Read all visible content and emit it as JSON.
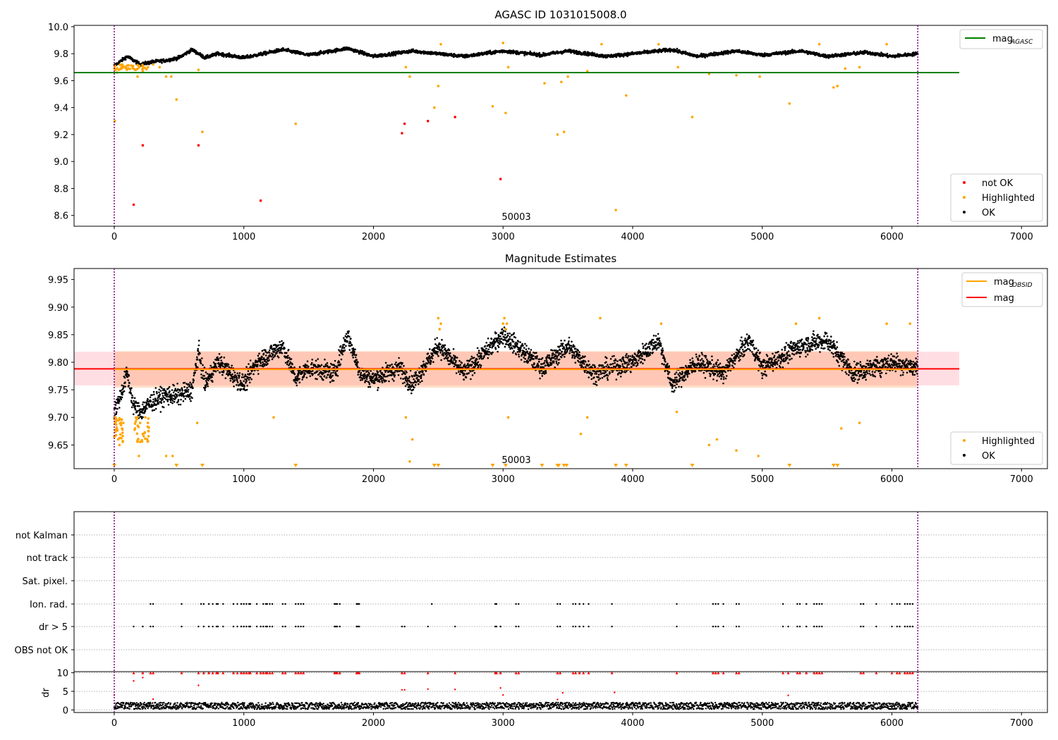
{
  "chart_data": [
    {
      "type": "scatter",
      "title": "AGASC ID 1031015008.0",
      "xlabel": "",
      "ylabel": "",
      "xlim": [
        -310,
        7200
      ],
      "ylim": [
        8.52,
        10.01
      ],
      "xticks": [
        "0",
        "1000",
        "2000",
        "3000",
        "4000",
        "5000",
        "6000",
        "7000"
      ],
      "yticks": [
        "10.0",
        "9.8",
        "9.6",
        "9.4",
        "9.2",
        "9.0",
        "8.8",
        "8.6"
      ],
      "grid": false,
      "obsid_markers": [
        0,
        6200
      ],
      "annotation": {
        "text": "50003",
        "x": 3000,
        "y": 8.55
      },
      "legend_placement": [
        "top-right",
        "bottom-right"
      ],
      "series": [
        {
          "name": "mag_AGASC",
          "kind": "line",
          "value": 9.66,
          "x": [
            -310,
            6520
          ],
          "color": "#008000"
        },
        {
          "name": "OK",
          "kind": "points",
          "color": "#000000",
          "trend": {
            "x": [
              0,
              100,
              200,
              300,
              400,
              500,
              600,
              700,
              800,
              1000,
              1300,
              1500,
              1800,
              2000,
              2300,
              2500,
              2700,
              3000,
              3300,
              3500,
              3800,
              4000,
              4300,
              4500,
              4800,
              5000,
              5300,
              5500,
              5800,
              6000,
              6200
            ],
            "y": [
              9.71,
              9.78,
              9.72,
              9.74,
              9.75,
              9.77,
              9.83,
              9.77,
              9.8,
              9.77,
              9.83,
              9.79,
              9.84,
              9.78,
              9.82,
              9.8,
              9.78,
              9.82,
              9.79,
              9.82,
              9.78,
              9.8,
              9.83,
              9.78,
              9.82,
              9.79,
              9.82,
              9.78,
              9.81,
              9.78,
              9.8
            ]
          }
        },
        {
          "name": "Highlighted",
          "kind": "points",
          "color": "#ffa500",
          "x": [
            5,
            20,
            35,
            60,
            110,
            160,
            180,
            220,
            260,
            300,
            350,
            400,
            440,
            480,
            650,
            680,
            1400,
            2250,
            2280,
            2470,
            2500,
            2520,
            2920,
            3000,
            3020,
            3040,
            3320,
            3420,
            3450,
            3470,
            3500,
            3650,
            3760,
            3870,
            3950,
            4200,
            4350,
            4460,
            4590,
            4800,
            4980,
            5210,
            5440,
            5550,
            5580,
            5640,
            5750,
            5960
          ],
          "y": [
            9.3,
            9.66,
            9.68,
            9.7,
            9.69,
            9.68,
            9.63,
            9.67,
            9.7,
            9.72,
            9.7,
            9.63,
            9.63,
            9.46,
            9.68,
            9.22,
            9.28,
            9.7,
            9.63,
            9.4,
            9.56,
            9.87,
            9.41,
            9.88,
            9.36,
            9.7,
            9.58,
            9.2,
            9.59,
            9.22,
            9.63,
            9.67,
            9.87,
            8.64,
            9.49,
            9.87,
            9.7,
            9.33,
            9.65,
            9.64,
            9.63,
            9.43,
            9.87,
            9.55,
            9.56,
            9.69,
            9.7,
            9.87
          ]
        },
        {
          "name": "not OK",
          "kind": "points",
          "color": "#ff0000",
          "x": [
            150,
            220,
            650,
            1130,
            2220,
            2240,
            2420,
            2630,
            2980
          ],
          "y": [
            8.68,
            9.12,
            9.12,
            8.71,
            9.21,
            9.28,
            9.3,
            9.33,
            8.87
          ]
        }
      ],
      "legends": [
        {
          "placement": "top-right",
          "entries": [
            {
              "label": "mag",
              "subscript": "AGASC",
              "color": "#008000",
              "symbol": "line"
            }
          ]
        },
        {
          "placement": "bottom-right",
          "entries": [
            {
              "label": "not OK",
              "color": "#ff0000",
              "symbol": "dot"
            },
            {
              "label": "Highlighted",
              "color": "#ffa500",
              "symbol": "dot"
            },
            {
              "label": "OK",
              "color": "#000000",
              "symbol": "dot"
            }
          ]
        }
      ]
    },
    {
      "type": "scatter",
      "title": "Magnitude Estimates",
      "xlabel": "",
      "ylabel": "",
      "xlim": [
        -310,
        7200
      ],
      "ylim": [
        9.607,
        9.97
      ],
      "xticks": [
        "0",
        "1000",
        "2000",
        "3000",
        "4000",
        "5000",
        "6000",
        "7000"
      ],
      "yticks": [
        "9.95",
        "9.90",
        "9.85",
        "9.80",
        "9.75",
        "9.70",
        "9.65"
      ],
      "grid": false,
      "obsid_markers": [
        0,
        6200
      ],
      "annotation": {
        "text": "50003",
        "x": 3000,
        "y": 9.612
      },
      "bands": [
        {
          "y_range": [
            9.758,
            9.819
          ],
          "x": [
            -310,
            6520
          ],
          "color": "#ffb6c1"
        },
        {
          "y_range": [
            9.754,
            9.82
          ],
          "x": [
            0,
            6200
          ],
          "color": "#ffa060"
        }
      ],
      "legend_placement": [
        "top-right",
        "bottom-right"
      ],
      "series": [
        {
          "name": "mag",
          "kind": "line",
          "value": 9.788,
          "x": [
            -310,
            6520
          ],
          "color": "#ff0000"
        },
        {
          "name": "mag_OBSID",
          "kind": "line",
          "value": 9.787,
          "x": [
            0,
            6200
          ],
          "color": "#ffa500"
        },
        {
          "name": "OK",
          "kind": "points",
          "color": "#000000",
          "trend": {
            "x": [
              0,
              50,
              100,
              150,
              200,
              250,
              300,
              400,
              500,
              600,
              650,
              700,
              800,
              1000,
              1100,
              1300,
              1400,
              1500,
              1700,
              1800,
              1900,
              2000,
              2200,
              2300,
              2500,
              2700,
              3000,
              3300,
              3500,
              3700,
              4000,
              4200,
              4300,
              4500,
              4700,
              4900,
              5000,
              5300,
              5500,
              5700,
              6000,
              6200
            ],
            "y": [
              9.71,
              9.74,
              9.78,
              9.72,
              9.71,
              9.72,
              9.73,
              9.74,
              9.74,
              9.75,
              9.82,
              9.76,
              9.8,
              9.76,
              9.8,
              9.83,
              9.77,
              9.79,
              9.78,
              9.85,
              9.78,
              9.77,
              9.79,
              9.76,
              9.83,
              9.78,
              9.85,
              9.79,
              9.83,
              9.78,
              9.8,
              9.84,
              9.76,
              9.8,
              9.78,
              9.84,
              9.79,
              9.83,
              9.84,
              9.78,
              9.8,
              9.79
            ]
          }
        },
        {
          "name": "Highlighted",
          "kind": "points",
          "color": "#ffa500",
          "x": [
            10,
            20,
            30,
            40,
            50,
            60,
            70,
            160,
            180,
            200,
            220,
            240,
            260,
            190,
            400,
            450,
            640,
            1230,
            2250,
            2280,
            2300,
            2500,
            2510,
            2520,
            3000,
            3010,
            3020,
            3030,
            3040,
            3600,
            3650,
            3750,
            4220,
            4340,
            4590,
            4650,
            4800,
            4970,
            5260,
            5440,
            5610,
            5750,
            5960,
            6140
          ],
          "y": [
            9.7,
            9.68,
            9.66,
            9.65,
            9.69,
            9.68,
            9.69,
            9.68,
            9.7,
            9.69,
            9.67,
            9.7,
            9.69,
            9.63,
            9.63,
            9.63,
            9.69,
            9.7,
            9.7,
            9.62,
            9.66,
            9.88,
            9.86,
            9.87,
            9.87,
            9.88,
            9.86,
            9.87,
            9.7,
            9.67,
            9.7,
            9.88,
            9.87,
            9.71,
            9.65,
            9.66,
            9.64,
            9.63,
            9.87,
            9.88,
            9.68,
            9.69,
            9.87,
            9.87
          ]
        },
        {
          "name": "Highlighted (below range)",
          "kind": "markers",
          "color": "#ffa500",
          "x": [
            0,
            480,
            680,
            1400,
            2470,
            2500,
            2920,
            3020,
            3300,
            3420,
            3430,
            3470,
            3490,
            3870,
            3950,
            4460,
            5210,
            5550,
            5580
          ]
        }
      ],
      "legends": [
        {
          "placement": "top-right",
          "entries": [
            {
              "label": "mag",
              "subscript": "OBSID",
              "color": "#ffa500",
              "symbol": "line"
            },
            {
              "label": "mag",
              "color": "#ff0000",
              "symbol": "line"
            }
          ]
        },
        {
          "placement": "bottom-right",
          "entries": [
            {
              "label": "Highlighted",
              "color": "#ffa500",
              "symbol": "dot"
            },
            {
              "label": "OK",
              "color": "#000000",
              "symbol": "dot"
            }
          ]
        }
      ]
    },
    {
      "type": "scatter",
      "title": "",
      "xlabel": "",
      "ylabel": "",
      "xlim": [
        -310,
        7200
      ],
      "categories": [
        "not Kalman",
        "not track",
        "Sat. pixel.",
        "Ion. rad.",
        "dr > 5",
        "OBS not OK"
      ],
      "grid": true,
      "obsid_markers": [
        0,
        6200
      ],
      "flags": {
        "Ion. rad.": [
          280,
          300,
          520,
          670,
          690,
          730,
          760,
          790,
          800,
          840,
          920,
          950,
          980,
          1000,
          1020,
          1040,
          1050,
          1100,
          1150,
          1170,
          1180,
          1200,
          1220,
          1300,
          1320,
          1400,
          1420,
          1440,
          1460,
          1700,
          1710,
          1720,
          1740,
          1870,
          1880,
          1890,
          2450,
          2940,
          2950,
          3100,
          3120,
          3420,
          3440,
          3540,
          3560,
          3590,
          3620,
          3660,
          3840,
          4340,
          4620,
          4640,
          4660,
          4700,
          4800,
          4820,
          5160,
          5270,
          5290,
          5340,
          5400,
          5420,
          5440,
          5460,
          5760,
          5780,
          5880,
          6000,
          6040,
          6060,
          6100,
          6120,
          6140,
          6160
        ],
        "dr > 5": [
          150,
          220,
          280,
          300,
          520,
          650,
          690,
          730,
          760,
          790,
          800,
          840,
          920,
          950,
          980,
          1000,
          1020,
          1040,
          1050,
          1100,
          1130,
          1150,
          1170,
          1180,
          1200,
          1220,
          1300,
          1320,
          1400,
          1420,
          1440,
          1460,
          1700,
          1710,
          1720,
          1740,
          1870,
          1880,
          1890,
          2220,
          2240,
          2420,
          2630,
          2940,
          2950,
          2980,
          3100,
          3120,
          3420,
          3440,
          3540,
          3560,
          3590,
          3620,
          3660,
          3840,
          4340,
          4620,
          4640,
          4660,
          4700,
          4800,
          4820,
          5160,
          5200,
          5270,
          5290,
          5340,
          5400,
          5420,
          5440,
          5460,
          5760,
          5780,
          5880,
          6000,
          6040,
          6060,
          6100,
          6120,
          6140,
          6160
        ]
      }
    },
    {
      "type": "scatter",
      "title": "",
      "xlabel": "",
      "ylabel": "dr",
      "xlim": [
        -310,
        7200
      ],
      "ylim": [
        -0.7,
        10.3
      ],
      "xticks": [
        "0",
        "1000",
        "2000",
        "3000",
        "4000",
        "5000",
        "6000",
        "7000"
      ],
      "yticks": [
        "10",
        "5",
        "0"
      ],
      "grid": true,
      "obsid_markers": [
        0,
        6200
      ],
      "series": [
        {
          "name": "dr",
          "kind": "points",
          "color": "#000000",
          "baseline": [
            0.2,
            2.0
          ]
        },
        {
          "name": "dr > 5 (clipped)",
          "kind": "markers",
          "color": "#ff0000",
          "value": 10
        },
        {
          "name": "dr (red)",
          "kind": "points",
          "color": "#ff0000",
          "x": [
            0,
            150,
            220,
            300,
            650,
            2220,
            2240,
            2420,
            2630,
            2980,
            3000,
            3420,
            3460,
            3860,
            5200
          ],
          "y": [
            4.0,
            7.8,
            8.7,
            2.9,
            6.6,
            5.4,
            5.4,
            5.6,
            5.5,
            5.9,
            4.0,
            2.8,
            4.6,
            4.7,
            3.9
          ]
        }
      ]
    }
  ]
}
